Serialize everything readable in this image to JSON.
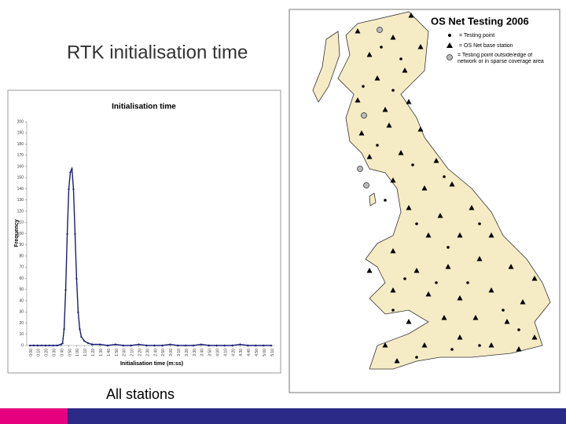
{
  "title": "RTK initialisation time",
  "caption": "All stations",
  "chart_data": {
    "type": "line",
    "title": "Initialisation time",
    "x_label": "Initialisation time (m:ss)",
    "y_label": "Frequency",
    "x": [
      0,
      5,
      10,
      15,
      20,
      25,
      30,
      35,
      40,
      42,
      44,
      46,
      48,
      50,
      52,
      54,
      56,
      58,
      60,
      62,
      64,
      66,
      70,
      75,
      80,
      90,
      100,
      110,
      120,
      130,
      140,
      150,
      160,
      170,
      180,
      190,
      200,
      210,
      220,
      230,
      240,
      250,
      260,
      270,
      280,
      290,
      300,
      310
    ],
    "series": [
      {
        "name": "All stations",
        "color": "#1c1c78",
        "values": [
          0,
          0,
          0,
          0,
          0,
          0,
          0,
          0,
          1,
          2,
          15,
          50,
          100,
          140,
          155,
          158,
          140,
          100,
          60,
          30,
          15,
          8,
          4,
          2,
          1,
          1,
          0,
          1,
          0,
          0,
          1,
          0,
          0,
          0,
          1,
          0,
          0,
          0,
          1,
          0,
          0,
          0,
          0,
          1,
          0,
          0,
          0,
          0
        ]
      }
    ],
    "xlim": [
      0,
      310
    ],
    "xticks": [
      {
        "value": 0,
        "label": "0:00"
      },
      {
        "value": 10,
        "label": "0:10"
      },
      {
        "value": 20,
        "label": "0:20"
      },
      {
        "value": 30,
        "label": "0:30"
      },
      {
        "value": 40,
        "label": "0:40"
      },
      {
        "value": 50,
        "label": "0:50"
      },
      {
        "value": 60,
        "label": "1:00"
      },
      {
        "value": 70,
        "label": "1:10"
      },
      {
        "value": 80,
        "label": "1:20"
      },
      {
        "value": 90,
        "label": "1:30"
      },
      {
        "value": 100,
        "label": "1:40"
      },
      {
        "value": 110,
        "label": "1:50"
      },
      {
        "value": 120,
        "label": "2:00"
      },
      {
        "value": 130,
        "label": "2:10"
      },
      {
        "value": 140,
        "label": "2:20"
      },
      {
        "value": 150,
        "label": "2:30"
      },
      {
        "value": 160,
        "label": "2:40"
      },
      {
        "value": 170,
        "label": "2:50"
      },
      {
        "value": 180,
        "label": "3:00"
      },
      {
        "value": 190,
        "label": "3:10"
      },
      {
        "value": 200,
        "label": "3:20"
      },
      {
        "value": 210,
        "label": "3:30"
      },
      {
        "value": 220,
        "label": "3:40"
      },
      {
        "value": 230,
        "label": "3:50"
      },
      {
        "value": 240,
        "label": "4:00"
      },
      {
        "value": 250,
        "label": "4:10"
      },
      {
        "value": 260,
        "label": "4:20"
      },
      {
        "value": 270,
        "label": "4:30"
      },
      {
        "value": 280,
        "label": "4:40"
      },
      {
        "value": 290,
        "label": "4:50"
      },
      {
        "value": 300,
        "label": "5:00"
      },
      {
        "value": 310,
        "label": "5:10"
      }
    ],
    "ylim": [
      0,
      200
    ],
    "yticks": [
      0,
      10,
      20,
      30,
      40,
      50,
      60,
      70,
      80,
      90,
      100,
      110,
      120,
      130,
      140,
      150,
      160,
      170,
      180,
      190,
      200
    ]
  },
  "map": {
    "title": "OS Net Testing 2006",
    "legend": [
      "= Testing point",
      "= OS Net base station",
      "= Testing point outside/edge of network or in sparse coverage area"
    ]
  }
}
